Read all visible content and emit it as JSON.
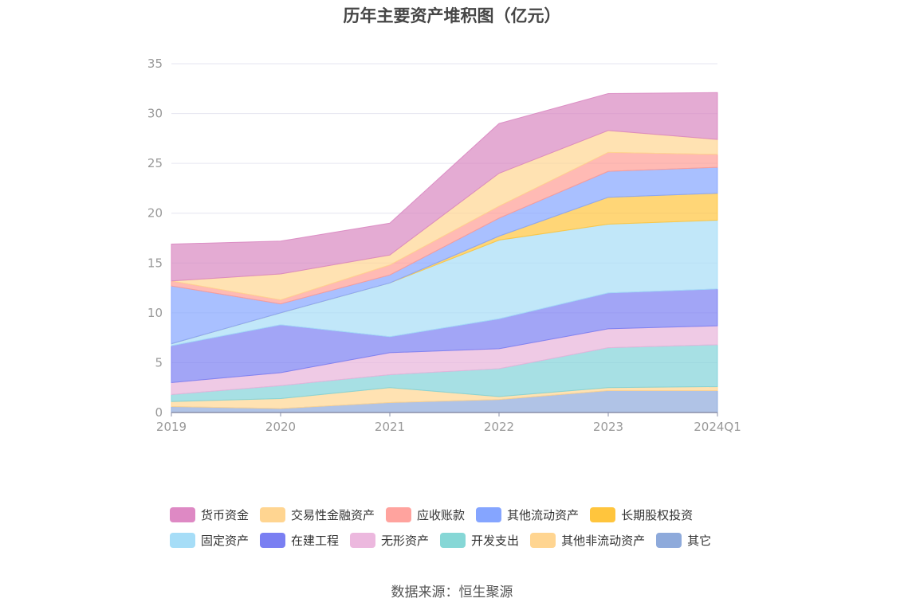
{
  "title": "历年主要资产堆积图（亿元）",
  "source": "数据来源：恒生聚源",
  "chart_data": {
    "type": "area",
    "stacked": true,
    "x": [
      "2019",
      "2020",
      "2021",
      "2022",
      "2023",
      "2024Q1"
    ],
    "ylim": [
      0,
      35
    ],
    "yticks": [
      0,
      5,
      10,
      15,
      20,
      25,
      30,
      35
    ],
    "grid": true,
    "legend_position": "bottom",
    "series": [
      {
        "name": "其它",
        "color": "#8eaadb",
        "values": [
          0.6,
          0.4,
          1.0,
          1.3,
          2.2,
          2.2
        ]
      },
      {
        "name": "其他非流动资产",
        "color": "#ffd591",
        "values": [
          0.5,
          1.0,
          1.5,
          0.3,
          0.3,
          0.4
        ]
      },
      {
        "name": "开发支出",
        "color": "#82d3d8",
        "values": [
          0.7,
          1.3,
          1.3,
          2.8,
          4.0,
          4.2
        ]
      },
      {
        "name": "无形资产",
        "color": "#e8b4da",
        "values": [
          1.2,
          1.3,
          2.2,
          2.0,
          1.9,
          1.9
        ]
      },
      {
        "name": "在建工程",
        "color": "#7a7ff2",
        "values": [
          3.7,
          4.8,
          1.6,
          3.0,
          3.6,
          3.7
        ]
      },
      {
        "name": "固定资产",
        "color": "#a6ddf7",
        "values": [
          0.2,
          1.2,
          5.4,
          7.9,
          6.9,
          6.9
        ]
      },
      {
        "name": "长期股权投资",
        "color": "#ffc53d",
        "values": [
          0.0,
          0.0,
          0.0,
          0.4,
          2.7,
          2.7
        ]
      },
      {
        "name": "其他流动资产",
        "color": "#85a5ff",
        "values": [
          5.8,
          0.9,
          0.8,
          1.8,
          2.6,
          2.6
        ]
      },
      {
        "name": "应收账款",
        "color": "#ff9c94",
        "values": [
          0.5,
          0.4,
          1.0,
          1.2,
          1.9,
          1.3
        ]
      },
      {
        "name": "交易性金融资产",
        "color": "#ffd591",
        "values": [
          0.0,
          2.6,
          1.0,
          3.3,
          2.2,
          1.5
        ]
      },
      {
        "name": "货币资金",
        "color": "#d987c1",
        "values": [
          3.7,
          3.3,
          3.2,
          5.0,
          3.7,
          4.7
        ]
      }
    ]
  },
  "legend": {
    "rows": [
      [
        {
          "name": "货币资金",
          "color": "#de89c4"
        },
        {
          "name": "交易性金融资产",
          "color": "#ffd591"
        },
        {
          "name": "应收账款",
          "color": "#ffa39e"
        },
        {
          "name": "其他流动资产",
          "color": "#85a5ff"
        },
        {
          "name": "长期股权投资",
          "color": "#ffc53d"
        }
      ],
      [
        {
          "name": "固定资产",
          "color": "#a6ddf7"
        },
        {
          "name": "在建工程",
          "color": "#7a7ff2"
        },
        {
          "name": "无形资产",
          "color": "#ecb8de"
        },
        {
          "name": "开发支出",
          "color": "#86d7d6"
        },
        {
          "name": "其他非流动资产",
          "color": "#ffd591"
        },
        {
          "name": "其它",
          "color": "#8eaadb"
        }
      ]
    ]
  }
}
